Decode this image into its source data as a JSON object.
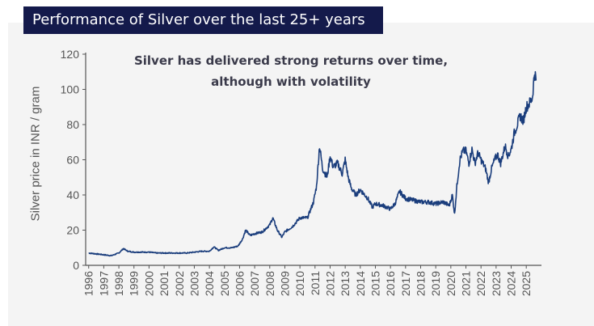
{
  "header": {
    "title": "Performance of Silver over the last 25+ years"
  },
  "colors": {
    "title_bg": "#141a4b",
    "line": "#1a3d7c",
    "panel_bg": "#f4f4f4"
  },
  "chart_data": {
    "type": "line",
    "title": "",
    "subtitle_lines": [
      "Silver has delivered strong returns over time,",
      "although with volatility"
    ],
    "xlabel": "",
    "ylabel": "Silver price in INR / gram",
    "ylim": [
      0,
      120
    ],
    "yticks": [
      "0",
      "20",
      "40",
      "60",
      "80",
      "100",
      "120"
    ],
    "xticks": [
      "1996",
      "1997",
      "1998",
      "1999",
      "2000",
      "2001",
      "2002",
      "2003",
      "2004",
      "2005",
      "2006",
      "2007",
      "2008",
      "2009",
      "2010",
      "2011",
      "2012",
      "2013",
      "2014",
      "2015",
      "2016",
      "2017",
      "2018",
      "2019",
      "2020",
      "2021",
      "2022",
      "2023",
      "2024",
      "2025"
    ],
    "grid": false,
    "legend": "none",
    "series": [
      {
        "x": [
          1996.0,
          1996.5,
          1997.0,
          1997.5,
          1998.0,
          1998.3,
          1998.6,
          1999.0,
          1999.5,
          2000.0,
          2000.5,
          2001.0,
          2001.5,
          2002.0,
          2002.5,
          2003.0,
          2003.5,
          2004.0,
          2004.3,
          2004.6,
          2005.0,
          2005.5,
          2005.9,
          2006.2,
          2006.4,
          2006.7,
          2007.0,
          2007.5,
          2008.0,
          2008.2,
          2008.5,
          2008.8,
          2009.0,
          2009.5,
          2010.0,
          2010.5,
          2010.9,
          2011.1,
          2011.3,
          2011.5,
          2011.8,
          2012.0,
          2012.2,
          2012.5,
          2012.8,
          2013.0,
          2013.2,
          2013.4,
          2013.7,
          2014.0,
          2014.5,
          2014.8,
          2015.0,
          2015.5,
          2016.0,
          2016.3,
          2016.6,
          2017.0,
          2017.5,
          2018.0,
          2018.5,
          2019.0,
          2019.5,
          2019.9,
          2020.1,
          2020.25,
          2020.4,
          2020.6,
          2020.8,
          2021.0,
          2021.2,
          2021.4,
          2021.6,
          2021.8,
          2022.0,
          2022.3,
          2022.5,
          2022.7,
          2022.9,
          2023.1,
          2023.3,
          2023.6,
          2023.8,
          2024.0,
          2024.2,
          2024.4,
          2024.6,
          2024.8,
          2025.0,
          2025.2,
          2025.4,
          2025.55,
          2025.65
        ],
        "y": [
          7,
          6.5,
          6,
          5.5,
          7,
          9.5,
          8,
          7.5,
          7.5,
          7.5,
          7,
          7,
          7,
          7,
          7,
          7.5,
          8,
          8,
          10.5,
          8.5,
          10,
          10,
          11,
          15,
          20,
          17,
          18,
          19,
          23,
          27,
          20,
          16,
          19,
          22,
          27,
          27,
          36,
          45,
          68,
          55,
          50,
          62,
          56,
          58,
          52,
          60,
          50,
          44,
          40,
          43,
          38,
          33,
          35,
          34,
          32,
          35,
          42,
          38,
          37,
          36,
          36,
          35,
          36,
          34,
          40,
          29,
          45,
          60,
          65,
          65,
          58,
          66,
          58,
          64,
          60,
          55,
          47,
          55,
          60,
          63,
          58,
          68,
          62,
          66,
          75,
          80,
          85,
          82,
          90,
          92,
          95,
          110,
          105
        ]
      }
    ]
  }
}
